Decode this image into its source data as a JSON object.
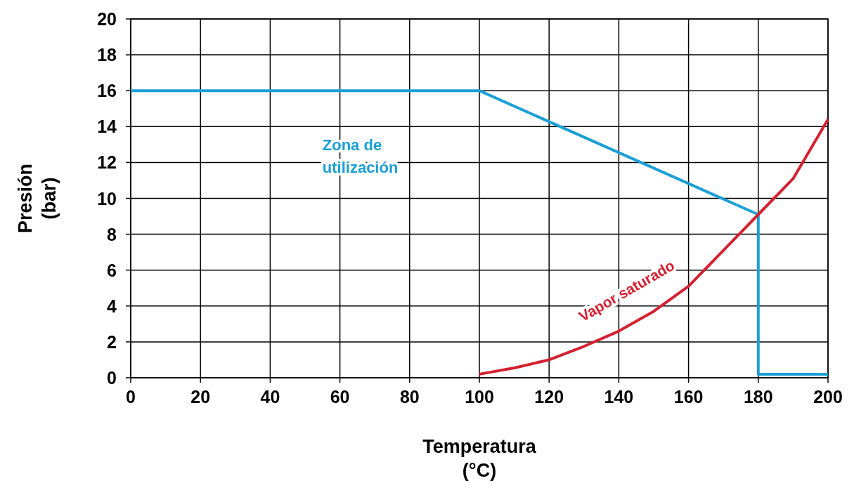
{
  "chart_data": {
    "type": "line",
    "xlabel": "Temperatura (°C)",
    "ylabel": "Presión (bar)",
    "xlim": [
      0,
      200
    ],
    "ylim": [
      0,
      20
    ],
    "xticks": [
      0,
      20,
      40,
      60,
      80,
      100,
      120,
      140,
      160,
      180,
      200
    ],
    "yticks": [
      0,
      2,
      4,
      6,
      8,
      10,
      12,
      14,
      16,
      18,
      20
    ],
    "grid": true,
    "marker": "none",
    "line_style": "solid",
    "series": [
      {
        "name": "Zona de utilización",
        "color": "#1a9fd6",
        "x": [
          0,
          100,
          180,
          180,
          200
        ],
        "values": [
          16,
          16,
          9.1,
          0.2,
          0.2
        ]
      },
      {
        "name": "Vapor saturado",
        "color": "#d42030",
        "x": [
          100,
          110,
          120,
          130,
          140,
          150,
          160,
          170,
          175,
          180,
          190,
          200
        ],
        "values": [
          0.2,
          0.55,
          1.0,
          1.75,
          2.6,
          3.7,
          5.1,
          7.1,
          8.1,
          9.1,
          11.1,
          14.4
        ]
      }
    ]
  }
}
